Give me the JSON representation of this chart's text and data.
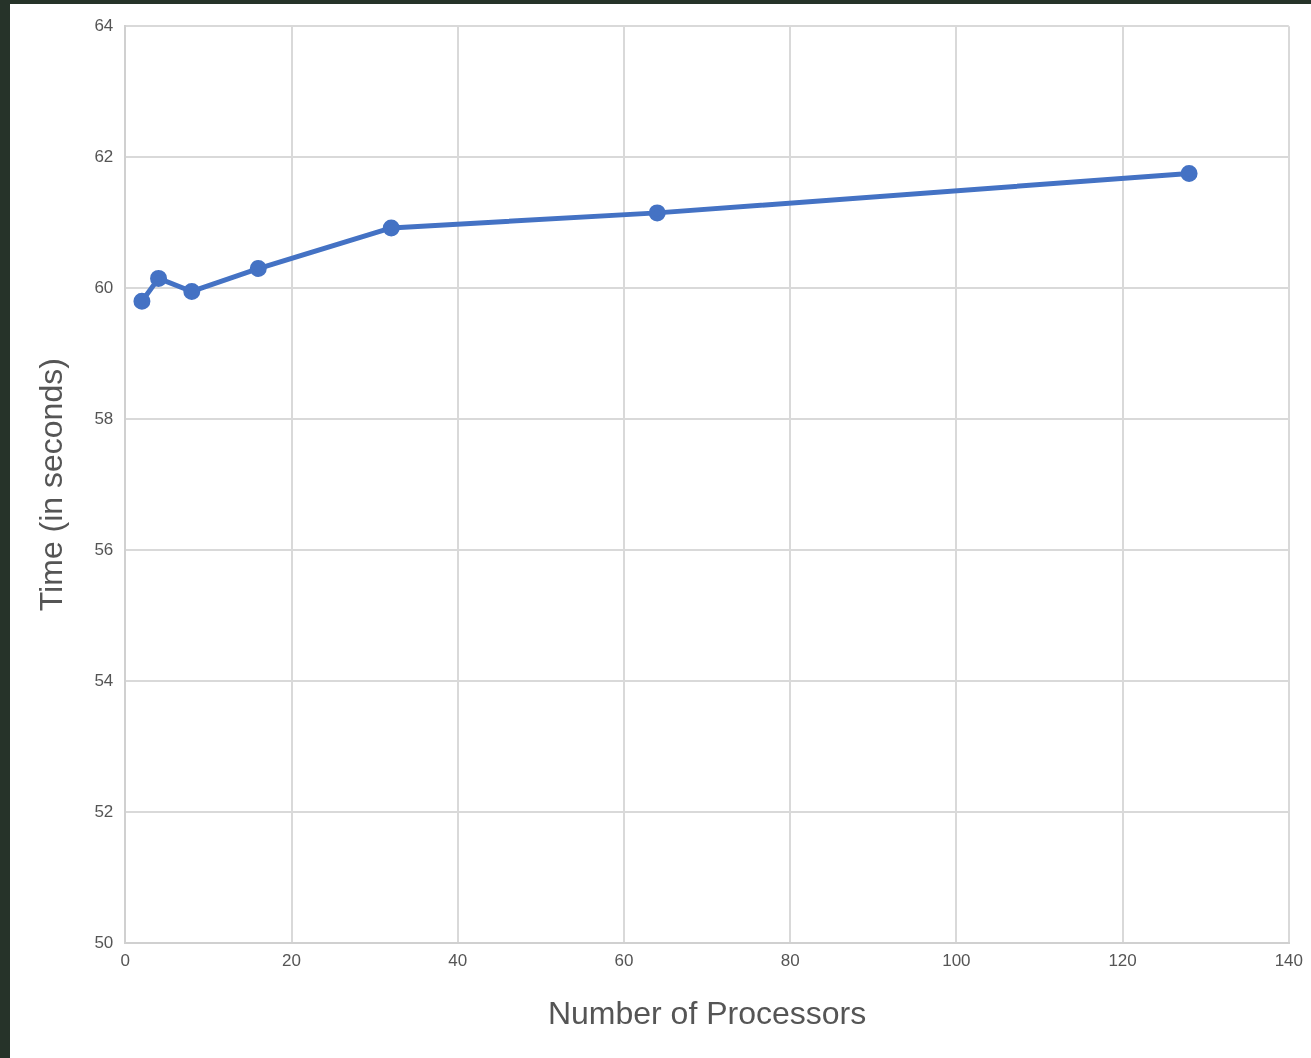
{
  "chart_data": {
    "type": "line",
    "xlabel": "Number of Processors",
    "ylabel": "Time (in seconds)",
    "x": [
      2,
      4,
      8,
      16,
      32,
      64,
      128
    ],
    "series": [
      {
        "color": "#4472c4",
        "values": [
          59.8,
          60.15,
          59.95,
          60.3,
          60.92,
          61.15,
          61.75
        ]
      }
    ],
    "xlim": [
      0,
      140
    ],
    "xticks": [
      0,
      20,
      40,
      60,
      80,
      100,
      120,
      140
    ],
    "ylim": [
      50,
      64
    ],
    "yticks": [
      50,
      52,
      54,
      56,
      58,
      60,
      62,
      64
    ],
    "grid": true,
    "legend": false,
    "marker": "circle",
    "line_style": "solid"
  }
}
